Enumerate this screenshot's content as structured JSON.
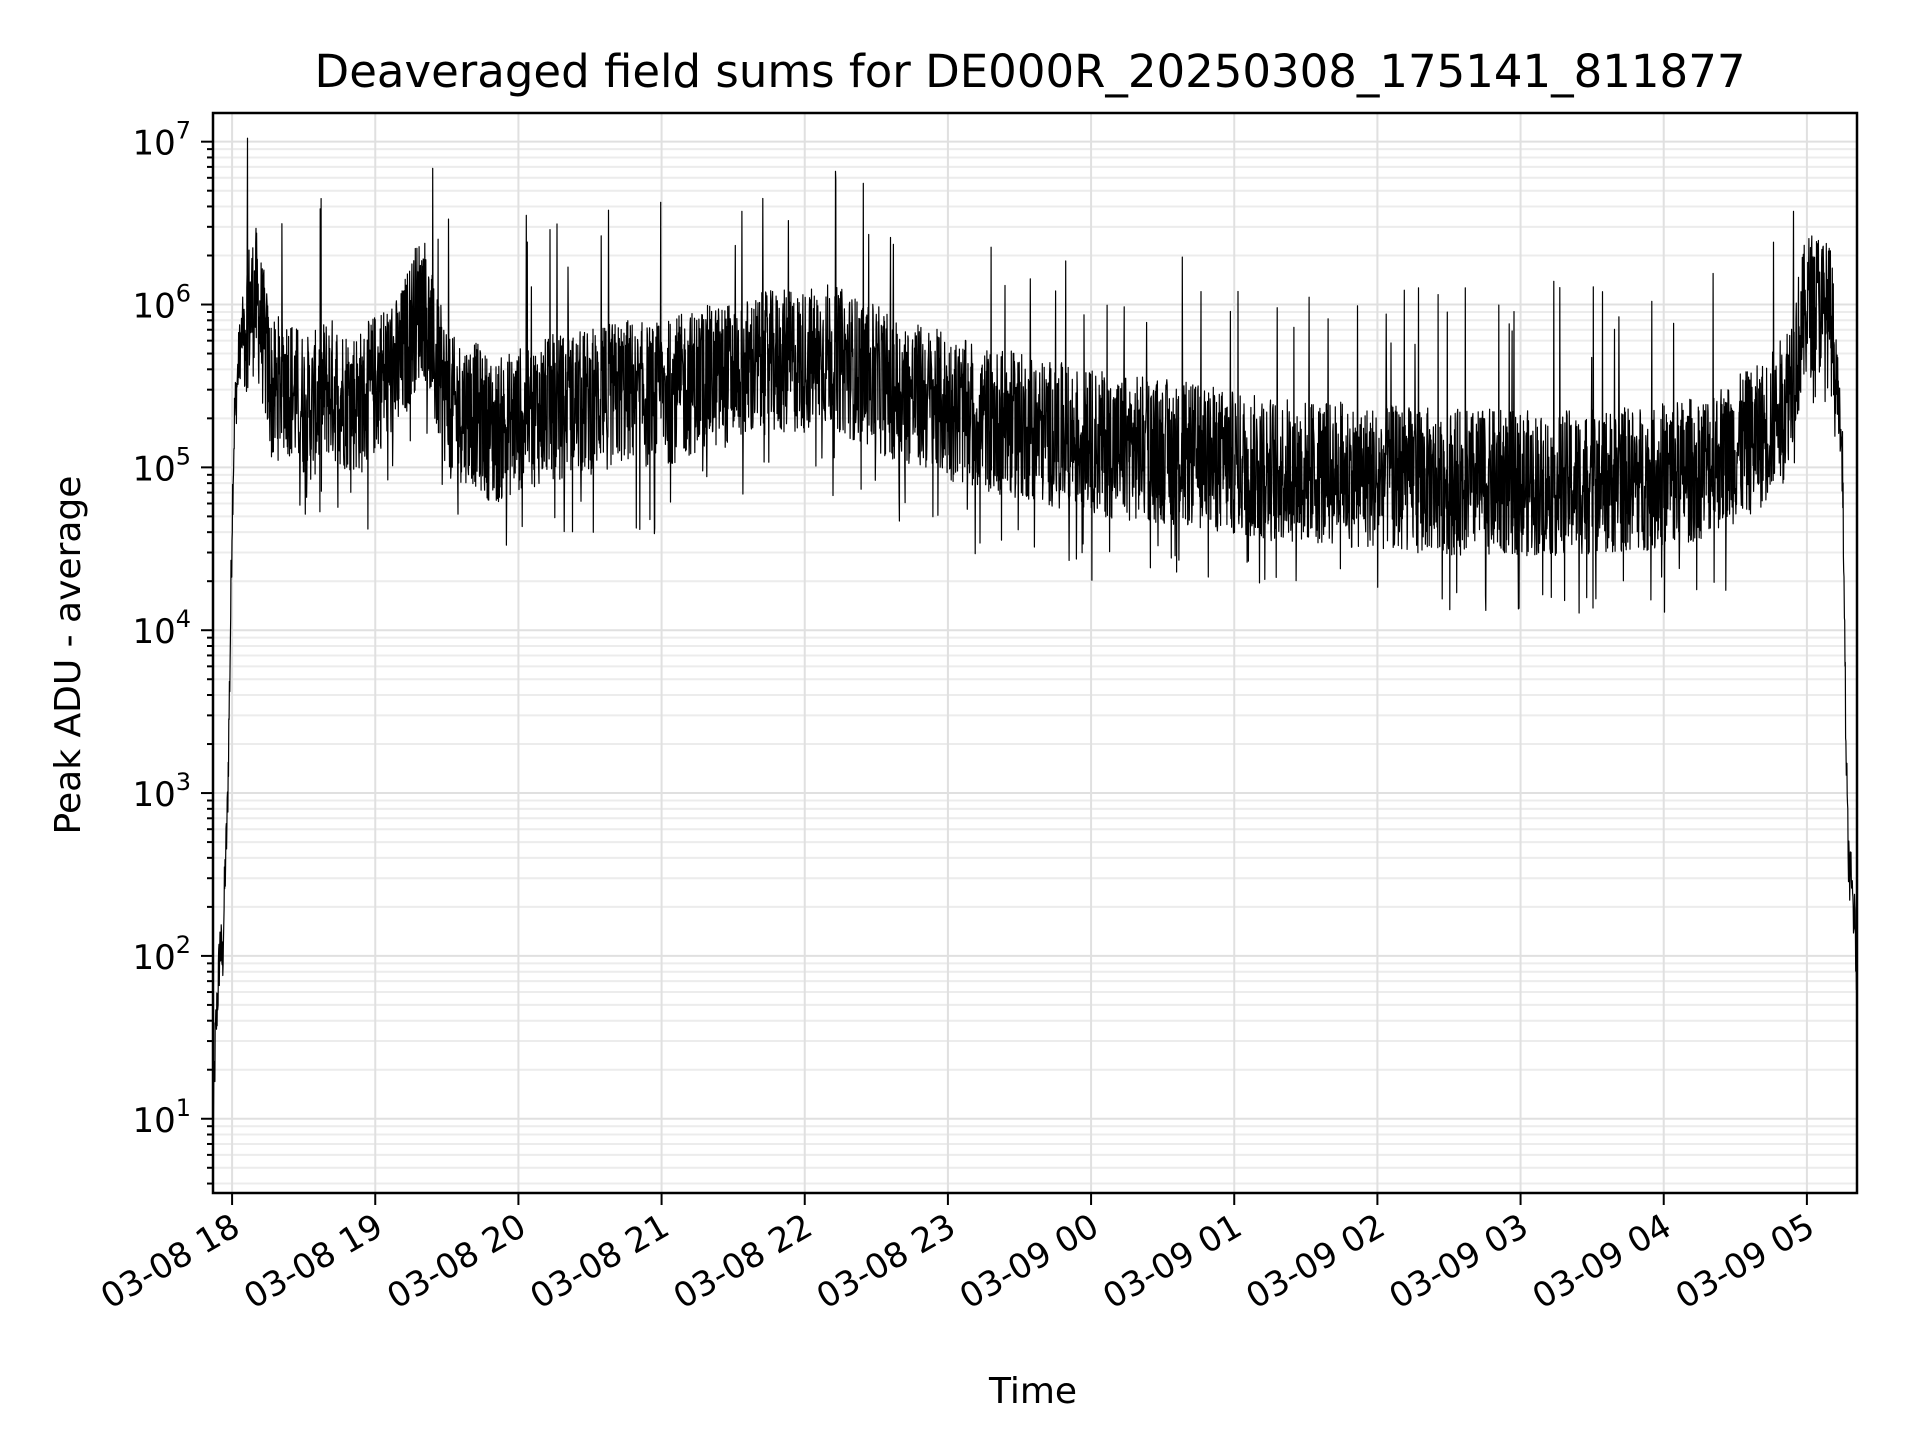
{
  "chart_data": {
    "type": "line",
    "title": "Deaveraged field sums for DE000R_20250308_175141_811877",
    "xlabel": "Time",
    "ylabel": "Peak ADU - average",
    "yscale": "log",
    "ylim": [
      3.5,
      15000000
    ],
    "xlim": [
      "2025-03-08 17:52",
      "2025-03-09 05:21"
    ],
    "grid": true,
    "line_color": "#000000",
    "x_ticks": [
      "03-08 18",
      "03-08 19",
      "03-08 20",
      "03-08 21",
      "03-08 22",
      "03-08 23",
      "03-09 00",
      "03-09 01",
      "03-09 02",
      "03-09 03",
      "03-09 04",
      "03-09 05"
    ],
    "y_ticks": [
      {
        "base": "10",
        "exp": "1"
      },
      {
        "base": "10",
        "exp": "2"
      },
      {
        "base": "10",
        "exp": "3"
      },
      {
        "base": "10",
        "exp": "4"
      },
      {
        "base": "10",
        "exp": "5"
      },
      {
        "base": "10",
        "exp": "6"
      },
      {
        "base": "10",
        "exp": "7"
      }
    ],
    "series": [
      {
        "x": [
          "2025-03-08 17:52",
          "2025-03-08 17:53",
          "2025-03-08 17:54",
          "2025-03-08 17:55",
          "2025-03-08 17:56",
          "2025-03-08 17:57",
          "2025-03-08 17:58",
          "2025-03-08 17:59",
          "2025-03-08 18:00",
          "2025-03-08 18:01",
          "2025-03-08 18:03",
          "2025-03-08 18:05",
          "2025-03-08 18:07",
          "2025-03-08 18:10",
          "2025-03-08 18:13",
          "2025-03-08 18:17",
          "2025-03-08 18:22",
          "2025-03-08 18:27",
          "2025-03-08 18:33",
          "2025-03-08 18:40",
          "2025-03-08 18:47",
          "2025-03-08 18:55",
          "2025-03-08 19:02",
          "2025-03-08 19:10",
          "2025-03-08 19:15",
          "2025-03-08 19:20",
          "2025-03-08 19:25",
          "2025-03-08 19:32",
          "2025-03-08 19:40",
          "2025-03-08 19:50",
          "2025-03-08 20:00",
          "2025-03-08 20:15",
          "2025-03-08 20:30",
          "2025-03-08 20:45",
          "2025-03-08 20:55",
          "2025-03-08 21:05",
          "2025-03-08 21:15",
          "2025-03-08 21:30",
          "2025-03-08 21:45",
          "2025-03-08 22:00",
          "2025-03-08 22:10",
          "2025-03-08 22:25",
          "2025-03-08 22:40",
          "2025-03-08 22:55",
          "2025-03-08 23:10",
          "2025-03-08 23:30",
          "2025-03-08 23:50",
          "2025-03-09 00:10",
          "2025-03-09 00:30",
          "2025-03-09 00:50",
          "2025-03-09 01:10",
          "2025-03-09 01:30",
          "2025-03-09 01:50",
          "2025-03-09 02:10",
          "2025-03-09 02:30",
          "2025-03-09 02:50",
          "2025-03-09 03:10",
          "2025-03-09 03:30",
          "2025-03-09 03:50",
          "2025-03-09 04:10",
          "2025-03-09 04:25",
          "2025-03-09 04:40",
          "2025-03-09 04:50",
          "2025-03-09 04:55",
          "2025-03-09 05:00",
          "2025-03-09 05:05",
          "2025-03-09 05:10",
          "2025-03-09 05:13",
          "2025-03-09 05:15",
          "2025-03-09 05:16",
          "2025-03-09 05:17",
          "2025-03-09 05:18",
          "2025-03-09 05:19",
          "2025-03-09 05:20",
          "2025-03-09 05:21"
        ],
        "y": [
          8,
          30,
          60,
          120,
          90,
          300,
          700,
          5000,
          50000,
          200000,
          500000,
          800000,
          1000000,
          1200000,
          700000,
          300000,
          400000,
          300000,
          250000,
          350000,
          300000,
          280000,
          400000,
          450000,
          800000,
          1200000,
          500000,
          250000,
          250000,
          180000,
          220000,
          260000,
          280000,
          330000,
          300000,
          330000,
          380000,
          420000,
          480000,
          500000,
          550000,
          420000,
          330000,
          280000,
          230000,
          200000,
          170000,
          150000,
          140000,
          125000,
          110000,
          105000,
          100000,
          95000,
          90000,
          90000,
          88000,
          90000,
          95000,
          105000,
          130000,
          170000,
          250000,
          500000,
          1100000,
          1150000,
          900000,
          300000,
          100000,
          5000,
          600,
          300,
          250,
          150,
          80
        ]
      }
    ]
  }
}
